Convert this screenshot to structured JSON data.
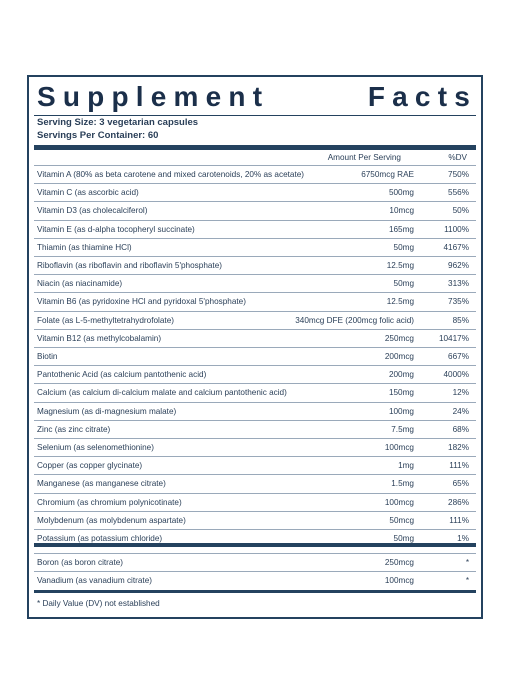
{
  "title_words": [
    "Supplement",
    "Facts"
  ],
  "serving_size": "Serving Size: 3 vegetarian capsules",
  "servings_per_container": "Servings Per Container: 60",
  "headers": {
    "amount": "Amount Per Serving",
    "dv": "%DV"
  },
  "nutrients": [
    {
      "name": "Vitamin A (80% as beta carotene and mixed carotenoids, 20% as acetate)",
      "amount": "6750mcg RAE",
      "dv": "750%"
    },
    {
      "name": "Vitamin C (as ascorbic acid)",
      "amount": "500mg",
      "dv": "556%"
    },
    {
      "name": "Vitamin D3 (as cholecalciferol)",
      "amount": "10mcg",
      "dv": "50%"
    },
    {
      "name": "Vitamin E (as d-alpha tocopheryl succinate)",
      "amount": "165mg",
      "dv": "1100%"
    },
    {
      "name": "Thiamin (as thiamine HCl)",
      "amount": "50mg",
      "dv": "4167%"
    },
    {
      "name": "Riboflavin (as riboflavin and riboflavin 5'phosphate)",
      "amount": "12.5mg",
      "dv": "962%"
    },
    {
      "name": "Niacin (as niacinamide)",
      "amount": "50mg",
      "dv": "313%"
    },
    {
      "name": "Vitamin B6 (as pyridoxine HCl and pyridoxal 5'phosphate)",
      "amount": "12.5mg",
      "dv": "735%"
    },
    {
      "name": "Folate (as L-5-methyltetrahydrofolate)",
      "amount": "340mcg DFE (200mcg folic acid)",
      "dv": "85%"
    },
    {
      "name": "Vitamin B12 (as methylcobalamin)",
      "amount": "250mcg",
      "dv": "10417%"
    },
    {
      "name": "Biotin",
      "amount": "200mcg",
      "dv": "667%"
    },
    {
      "name": "Pantothenic Acid (as calcium pantothenic acid)",
      "amount": "200mg",
      "dv": "4000%"
    },
    {
      "name": "Calcium (as calcium di-calcium malate and calcium pantothenic acid)",
      "amount": "150mg",
      "dv": "12%"
    },
    {
      "name": "Magnesium (as di-magnesium malate)",
      "amount": "100mg",
      "dv": "24%"
    },
    {
      "name": "Zinc (as zinc citrate)",
      "amount": "7.5mg",
      "dv": "68%"
    },
    {
      "name": "Selenium (as selenomethionine)",
      "amount": "100mcg",
      "dv": "182%"
    },
    {
      "name": "Copper (as copper glycinate)",
      "amount": "1mg",
      "dv": "111%"
    },
    {
      "name": "Manganese (as manganese citrate)",
      "amount": "1.5mg",
      "dv": "65%"
    },
    {
      "name": "Chromium (as chromium polynicotinate)",
      "amount": "100mcg",
      "dv": "286%"
    },
    {
      "name": "Molybdenum (as molybdenum aspartate)",
      "amount": "50mcg",
      "dv": "111%"
    },
    {
      "name": "Potassium (as potassium chloride)",
      "amount": "50mg",
      "dv": "1%"
    }
  ],
  "others": [
    {
      "name": "Boron (as boron citrate)",
      "amount": "250mcg",
      "dv": "*"
    },
    {
      "name": "Vanadium (as vanadium citrate)",
      "amount": "100mcg",
      "dv": "*"
    }
  ],
  "footnote": "* Daily Value (DV) not established",
  "colors": {
    "border": "#24425f",
    "text": "#2a3f58"
  }
}
